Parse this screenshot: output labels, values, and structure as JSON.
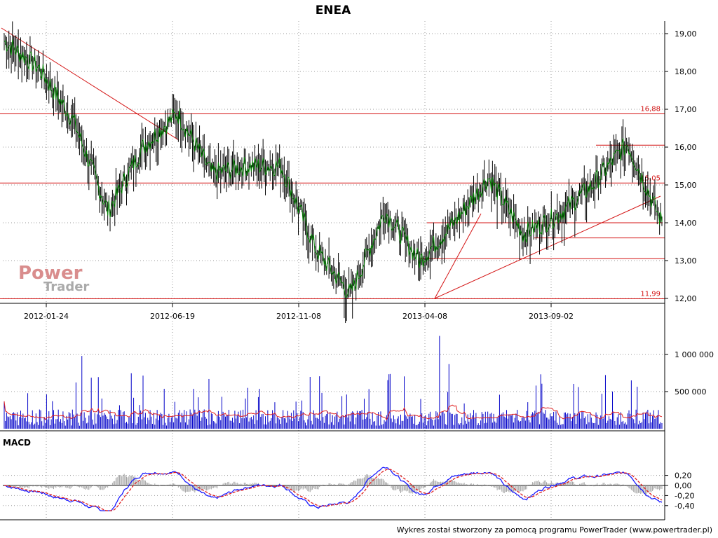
{
  "chart_data": [
    {
      "panel": "price",
      "type": "line",
      "title": "ENEA",
      "x_ticks": [
        "2012-01-24",
        "2012-06-19",
        "2012-11-08",
        "2013-04-08",
        "2013-09-02"
      ],
      "y_ticks": [
        "19,00",
        "18,00",
        "17,00",
        "16,00",
        "15,00",
        "14,00",
        "13,00",
        "12,00"
      ],
      "ylim": [
        12.0,
        19.0
      ],
      "grid": true,
      "horizontal_levels": [
        {
          "label": "16,88",
          "value": 16.88
        },
        {
          "label": "15,05",
          "value": 15.05
        },
        {
          "label": "11,99",
          "value": 11.99
        }
      ],
      "key_points": [
        {
          "x": "2012-01",
          "y": 18.8
        },
        {
          "x": "2012-03",
          "y": 18.1
        },
        {
          "x": "2012-05",
          "y": 16.7
        },
        {
          "x": "2012-06",
          "y": 14.3
        },
        {
          "x": "2012-07",
          "y": 16.0
        },
        {
          "x": "2012-09",
          "y": 16.9
        },
        {
          "x": "2012-11",
          "y": 15.3
        },
        {
          "x": "2013-01",
          "y": 15.5
        },
        {
          "x": "2013-02",
          "y": 15.5
        },
        {
          "x": "2013-03",
          "y": 13.3
        },
        {
          "x": "2013-04",
          "y": 12.1
        },
        {
          "x": "2013-05",
          "y": 14.3
        },
        {
          "x": "2013-06",
          "y": 13.0
        },
        {
          "x": "2013-07",
          "y": 14.0
        },
        {
          "x": "2013-08",
          "y": 15.2
        },
        {
          "x": "2013-09",
          "y": 13.7
        },
        {
          "x": "2013-10",
          "y": 14.2
        },
        {
          "x": "2013-11",
          "y": 15.0
        },
        {
          "x": "2013-12",
          "y": 16.1
        },
        {
          "x": "2014-01",
          "y": 14.0
        }
      ]
    },
    {
      "panel": "volume",
      "type": "bar",
      "y_ticks": [
        "1 000 000",
        "500 000"
      ],
      "ylim": [
        0,
        1300000
      ],
      "grid": true
    },
    {
      "panel": "macd",
      "type": "line",
      "label": "MACD",
      "y_ticks": [
        "0,20",
        "0,00",
        "-0,20",
        "-0,40"
      ],
      "ylim": [
        -0.5,
        0.4
      ],
      "grid": true
    }
  ],
  "footer": "Wykres został stworzony za pomocą programu PowerTrader (www.powertrader.pl)",
  "logo": {
    "top": "Power",
    "bottom": "Trader"
  },
  "colors": {
    "price_bar": "#000000",
    "price_line": "#008000",
    "level_red": "#d41414",
    "volume_bar": "#0000c8",
    "volume_avg": "#e02020",
    "macd_line": "#1a1aff",
    "signal_line": "#e02020",
    "histogram": "#a0a0a0"
  }
}
